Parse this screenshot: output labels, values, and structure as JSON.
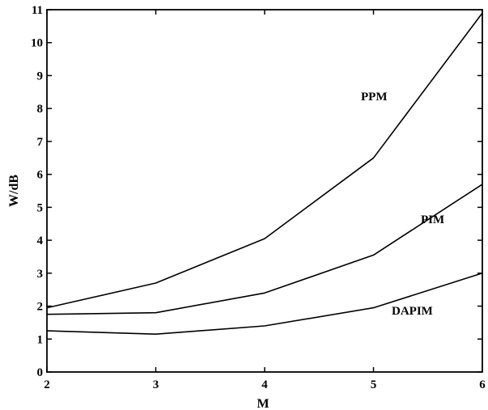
{
  "chart_data": {
    "type": "line",
    "title": "",
    "xlabel": "M",
    "ylabel": "W/dB",
    "x": [
      2,
      3,
      4,
      5,
      6
    ],
    "xlim": [
      2,
      6
    ],
    "ylim": [
      0,
      11
    ],
    "xticks": [
      "2",
      "3",
      "4",
      "5",
      "6"
    ],
    "yticks": [
      "0",
      "1",
      "2",
      "3",
      "4",
      "5",
      "6",
      "7",
      "8",
      "9",
      "10",
      "11"
    ],
    "grid": false,
    "legend": "inline labels",
    "series": [
      {
        "name": "PPM",
        "values": [
          1.95,
          2.7,
          4.05,
          6.5,
          10.9
        ]
      },
      {
        "name": "PIM",
        "values": [
          1.75,
          1.8,
          2.4,
          3.55,
          5.7
        ]
      },
      {
        "name": "DAPIM",
        "values": [
          1.25,
          1.15,
          1.4,
          1.95,
          3.0
        ]
      }
    ]
  }
}
